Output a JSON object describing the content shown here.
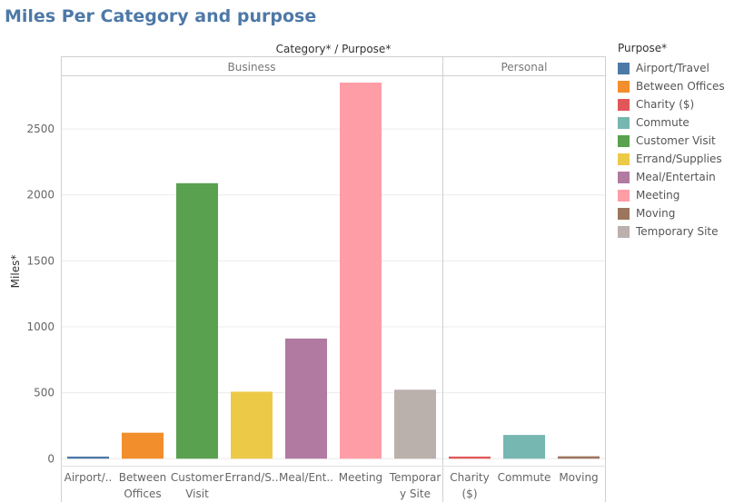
{
  "title": "Miles Per Category and purpose",
  "chart_data": {
    "type": "bar",
    "header_title": "Category* / Purpose*",
    "ylabel": "Miles*",
    "ylim": [
      -60,
      2900
    ],
    "yticks": [
      0,
      500,
      1000,
      1500,
      2000,
      2500
    ],
    "panels": [
      {
        "name": "Business",
        "categories": [
          {
            "key": "Airport/Travel",
            "label": [
              "Airport/.."
            ],
            "value": 16
          },
          {
            "key": "Between Offices",
            "label": [
              "Between",
              "Offices"
            ],
            "value": 197
          },
          {
            "key": "Customer Visit",
            "label": [
              "Customer",
              "Visit"
            ],
            "value": 2089
          },
          {
            "key": "Errand/Supplies",
            "label": [
              "Errand/S.."
            ],
            "value": 508
          },
          {
            "key": "Meal/Entertain",
            "label": [
              "Meal/Ent.."
            ],
            "value": 911
          },
          {
            "key": "Meeting",
            "label": [
              "Meeting"
            ],
            "value": 2852
          },
          {
            "key": "Temporary Site",
            "label": [
              "Temporar",
              "y Site"
            ],
            "value": 523
          }
        ]
      },
      {
        "name": "Personal",
        "categories": [
          {
            "key": "Charity ($)",
            "label": [
              "Charity",
              "($)"
            ],
            "value": 16
          },
          {
            "key": "Commute",
            "label": [
              "Commute"
            ],
            "value": 180
          },
          {
            "key": "Moving",
            "label": [
              "Moving"
            ],
            "value": 18
          }
        ]
      }
    ],
    "legend": {
      "title": "Purpose*",
      "position": "right",
      "items": [
        {
          "label": "Airport/Travel",
          "color": "#4e79a7"
        },
        {
          "label": "Between Offices",
          "color": "#f28e2b"
        },
        {
          "label": "Charity ($)",
          "color": "#e15759"
        },
        {
          "label": "Commute",
          "color": "#76b7b2"
        },
        {
          "label": "Customer Visit",
          "color": "#59a14f"
        },
        {
          "label": "Errand/Supplies",
          "color": "#edc948"
        },
        {
          "label": "Meal/Entertain",
          "color": "#b07aa1"
        },
        {
          "label": "Meeting",
          "color": "#ff9da7"
        },
        {
          "label": "Moving",
          "color": "#9c755f"
        },
        {
          "label": "Temporary Site",
          "color": "#bab0ac"
        }
      ]
    }
  }
}
